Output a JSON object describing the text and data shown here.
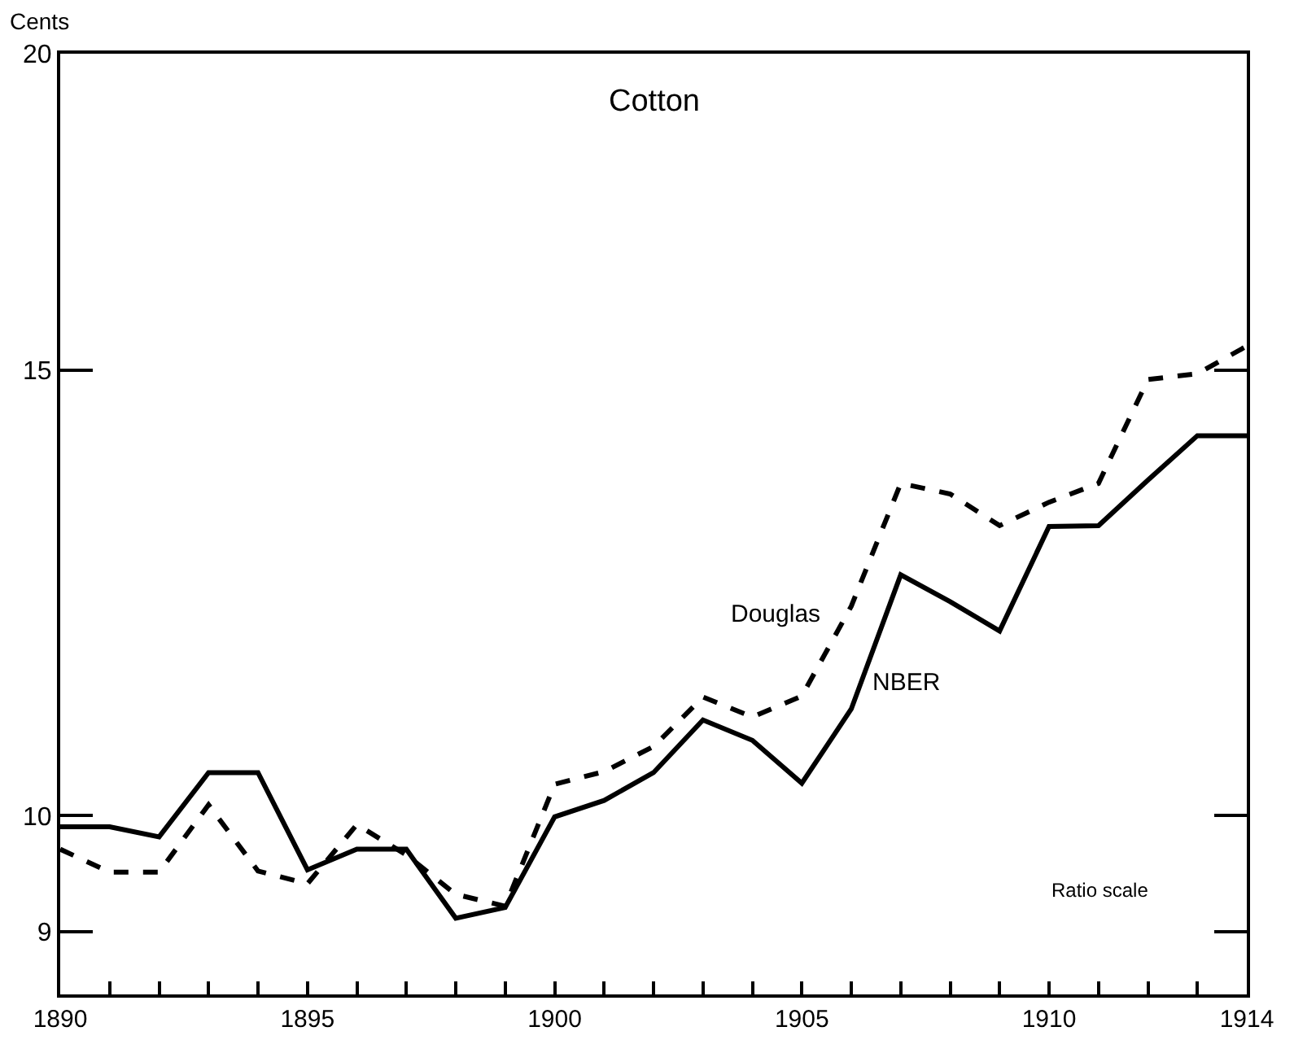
{
  "chart_data": {
    "type": "line",
    "title": "Cotton",
    "ylabel": "Cents",
    "x": [
      1890,
      1891,
      1892,
      1893,
      1894,
      1895,
      1896,
      1897,
      1898,
      1899,
      1900,
      1901,
      1902,
      1903,
      1904,
      1905,
      1906,
      1907,
      1908,
      1909,
      1910,
      1911,
      1912,
      1913,
      1914
    ],
    "series": [
      {
        "name": "NBER",
        "color": "#000000",
        "line_style": "solid",
        "values": [
          9.9,
          9.9,
          9.81,
          10.4,
          10.4,
          9.52,
          9.7,
          9.7,
          9.11,
          9.2,
          9.99,
          10.14,
          10.4,
          10.91,
          10.71,
          10.3,
          11.02,
          12.45,
          12.15,
          11.83,
          13.01,
          13.02,
          13.57,
          14.13,
          14.13
        ]
      },
      {
        "name": "Douglas",
        "color": "#000000",
        "line_style": "dashed",
        "values": [
          9.7,
          9.5,
          9.5,
          10.1,
          9.51,
          9.4,
          9.92,
          9.65,
          9.31,
          9.21,
          10.29,
          10.41,
          10.65,
          11.14,
          10.94,
          11.15,
          12.1,
          13.53,
          13.4,
          13.02,
          13.3,
          13.53,
          14.87,
          14.95,
          15.33
        ]
      }
    ],
    "log": "y",
    "ylim": [
      8.5,
      20
    ],
    "yticks": [
      9,
      10,
      15,
      20
    ],
    "xlim": [
      1890,
      1914
    ],
    "xticks": [
      1890,
      {
        "value": 1891,
        "label": null
      },
      {
        "value": 1892,
        "label": null
      },
      {
        "value": 1893,
        "label": null
      },
      {
        "value": 1894,
        "label": null
      },
      1895,
      {
        "value": 1896,
        "label": null
      },
      {
        "value": 1897,
        "label": null
      },
      {
        "value": 1898,
        "label": null
      },
      {
        "value": 1899,
        "label": null
      },
      1900,
      {
        "value": 1901,
        "label": null
      },
      {
        "value": 1902,
        "label": null
      },
      {
        "value": 1903,
        "label": null
      },
      {
        "value": 1904,
        "label": null
      },
      1905,
      {
        "value": 1906,
        "label": null
      },
      {
        "value": 1907,
        "label": null
      },
      {
        "value": 1908,
        "label": null
      },
      {
        "value": 1909,
        "label": null
      },
      1910,
      {
        "value": 1911,
        "label": null
      },
      {
        "value": 1912,
        "label": null
      },
      {
        "value": 1913,
        "label": null
      },
      1914
    ],
    "annotations": [
      "Ratio scale"
    ],
    "legend": false,
    "marker": "none"
  }
}
